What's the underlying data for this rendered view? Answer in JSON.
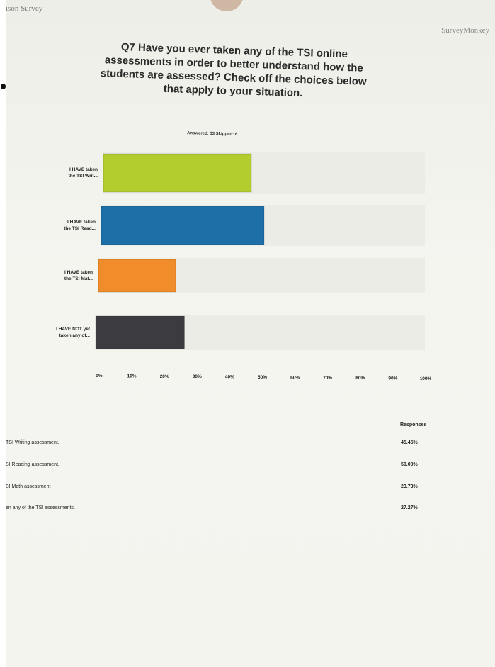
{
  "header": {
    "left_text": "ison Survey",
    "right_text": "SurveyMonkey"
  },
  "question": {
    "title": "Q7 Have you ever taken any of the TSI online assessments in order to better understand how the students are assessed? Check off the choices below that apply to your situation.",
    "answered_label": "Answered: 33   Skipped: 8"
  },
  "chart_data": {
    "type": "bar",
    "orientation": "horizontal",
    "categories": [
      "I HAVE taken the TSI Writ...",
      "I HAVE taken the TSI Read...",
      "I HAVE taken the TSI Mat...",
      "I HAVE NOT yet taken any of..."
    ],
    "values": [
      45.45,
      50.0,
      23.73,
      27.27
    ],
    "colors": [
      "#b3cd2e",
      "#1e6ea8",
      "#f08c2a",
      "#3b3b40"
    ],
    "xlim": [
      0,
      100
    ],
    "xticks": [
      "0%",
      "10%",
      "20%",
      "30%",
      "40%",
      "50%",
      "60%",
      "70%",
      "80%",
      "90%",
      "100%"
    ],
    "grid": false
  },
  "responses": {
    "header": "Responses",
    "rows": [
      {
        "label": "TSI Writing assessment.",
        "pct": "45.45%"
      },
      {
        "label": "SI Reading assessment.",
        "pct": "50.00%"
      },
      {
        "label": "SI Math assessment",
        "pct": "23.73%"
      },
      {
        "label": "en any of the TSI assessments.",
        "pct": "27.27%"
      }
    ]
  }
}
